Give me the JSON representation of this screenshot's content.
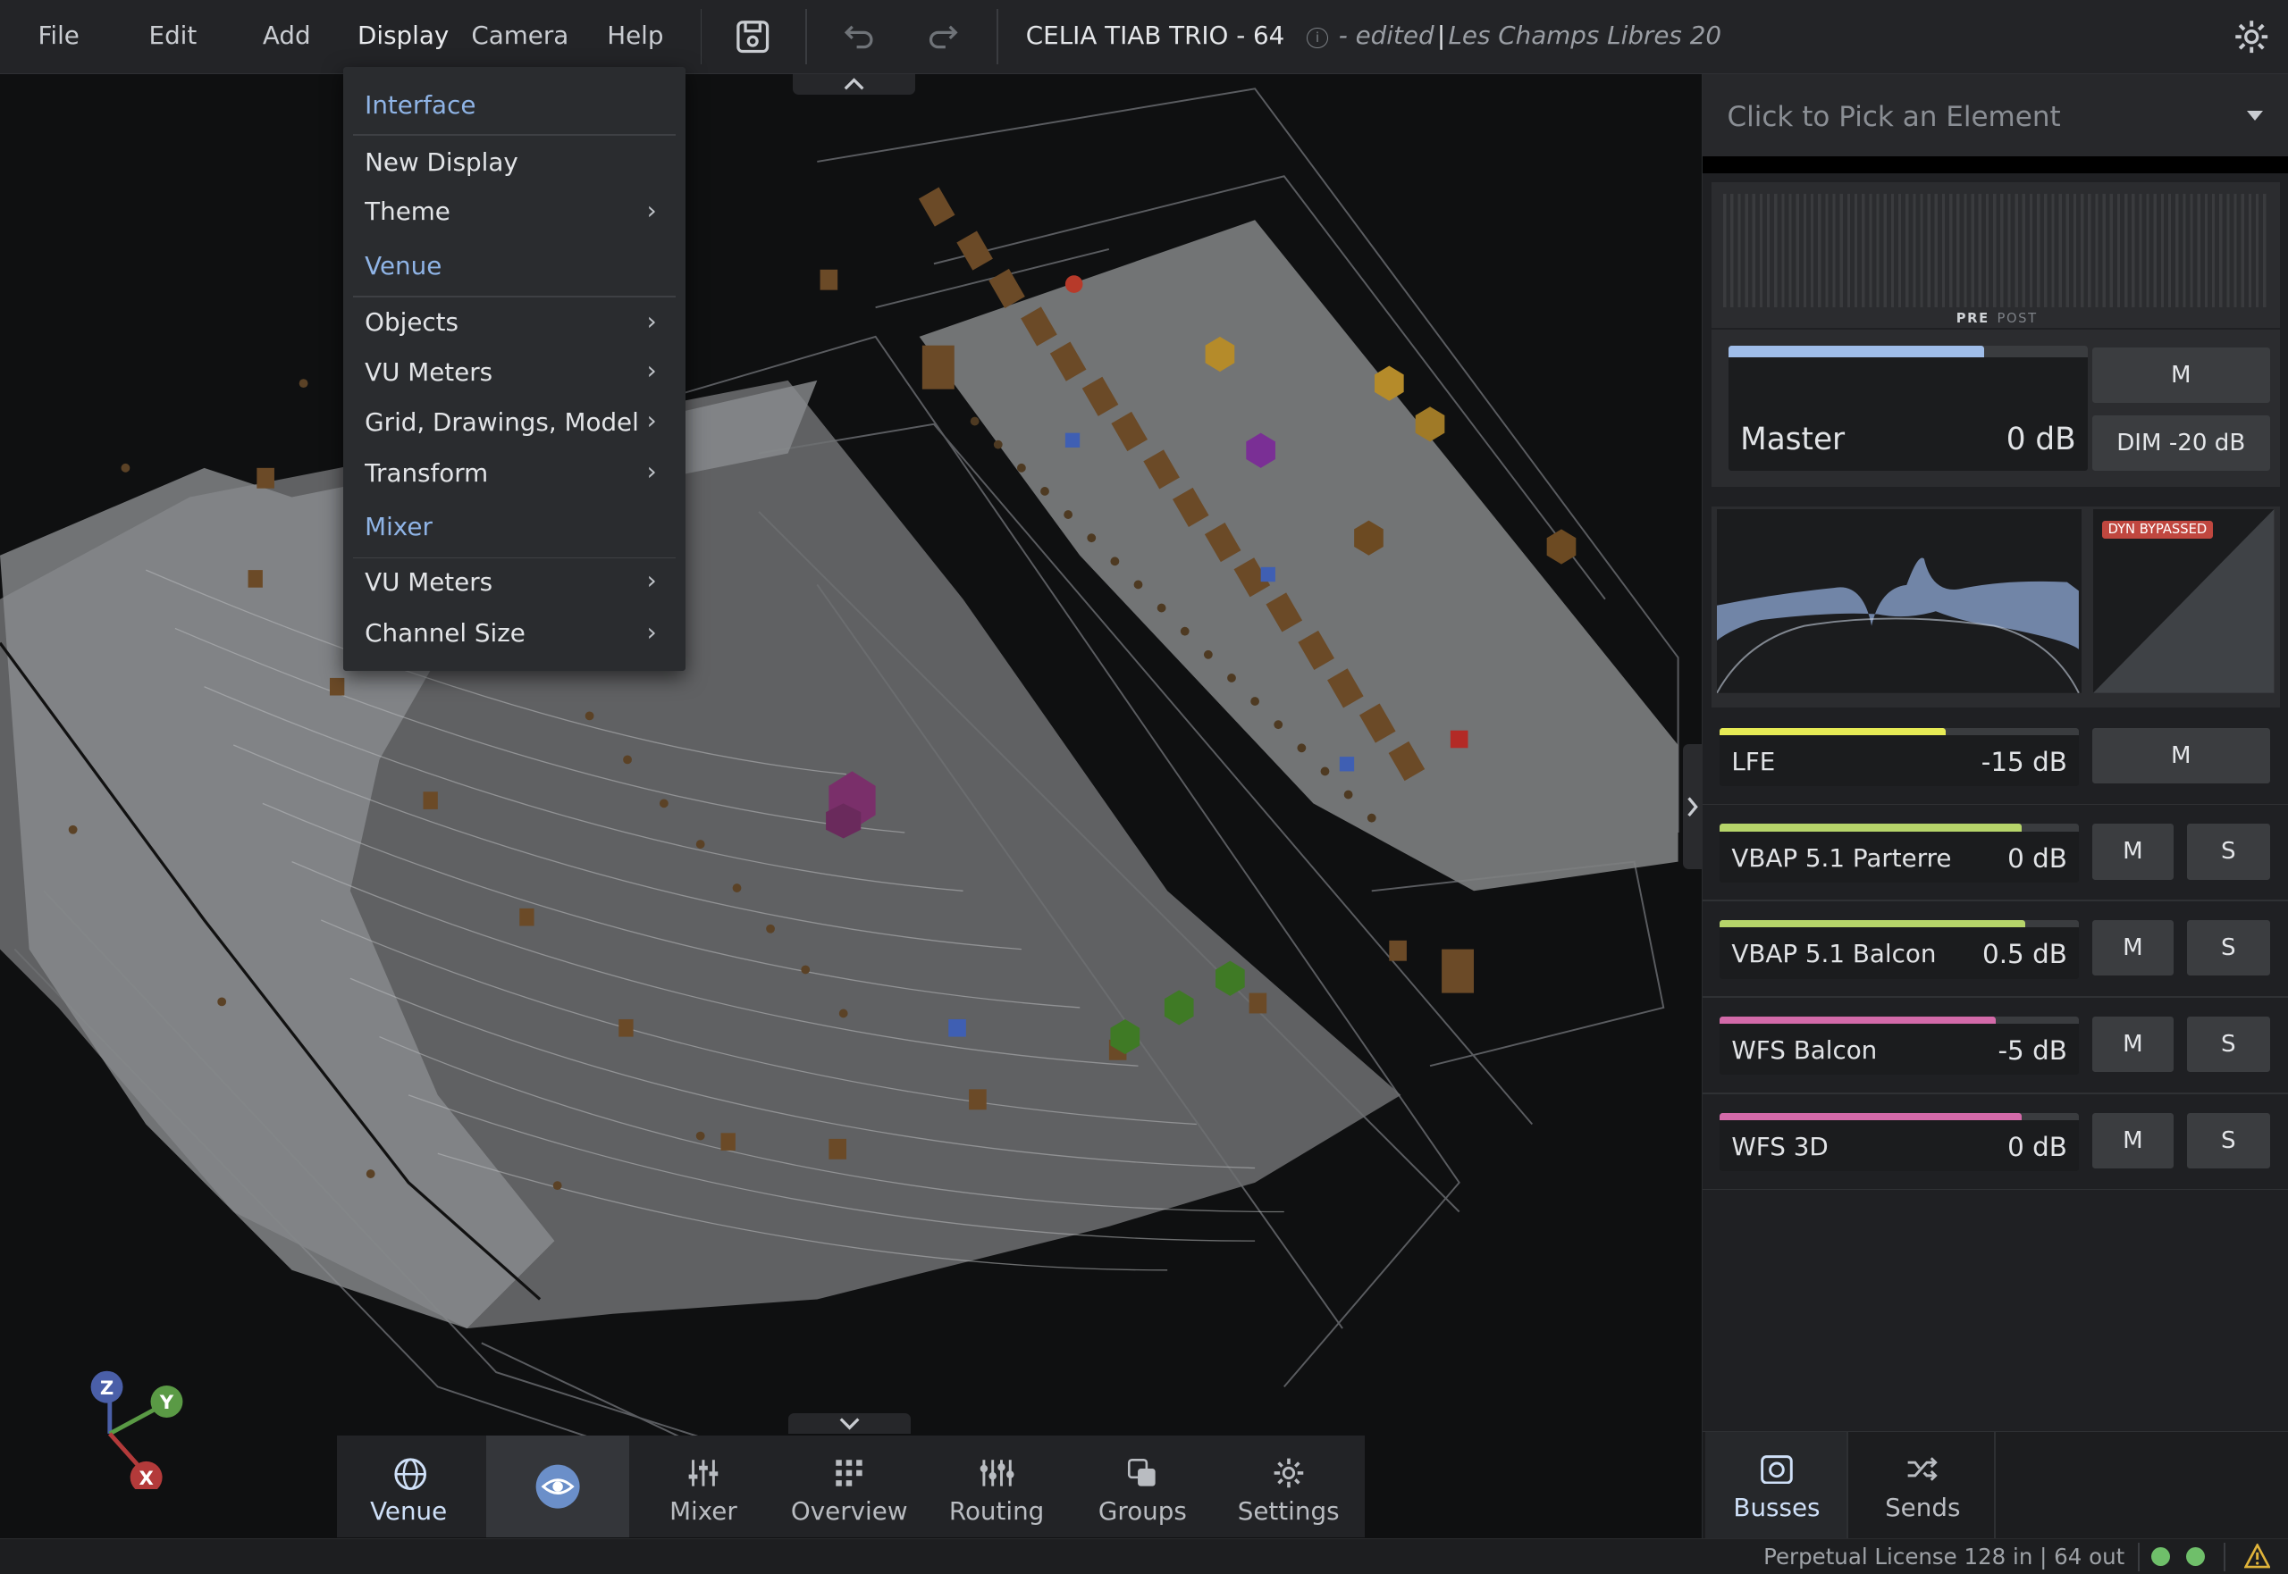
{
  "menubar": {
    "items": [
      "File",
      "Edit",
      "Add",
      "Display",
      "Camera",
      "Help"
    ]
  },
  "toolbar": {
    "save_icon": "save-icon",
    "undo_icon": "undo-icon",
    "redo_icon": "redo-icon"
  },
  "document": {
    "title": "CELIA TIAB TRIO - 64",
    "edited": " - edited",
    "separator": "|",
    "venue": "Les Champs Libres 20"
  },
  "display_menu": {
    "sections": [
      {
        "label": "Interface",
        "items": [
          {
            "label": "New Display",
            "submenu": false
          },
          {
            "label": "Theme",
            "submenu": true
          }
        ]
      },
      {
        "label": "Venue",
        "items": [
          {
            "label": "Objects",
            "submenu": true
          },
          {
            "label": "VU Meters",
            "submenu": true
          },
          {
            "label": "Grid, Drawings, Model",
            "submenu": true
          },
          {
            "label": "Transform",
            "submenu": true
          }
        ]
      },
      {
        "label": "Mixer",
        "items": [
          {
            "label": "VU Meters",
            "submenu": true
          },
          {
            "label": "Channel Size",
            "submenu": true
          }
        ]
      }
    ]
  },
  "axes_gizmo": {
    "z": "Z",
    "y": "Y",
    "x": "X"
  },
  "bottom_tabs": [
    {
      "label": "Venue",
      "icon": "globe-icon",
      "active": true
    },
    {
      "label": "",
      "icon": "eye-icon",
      "active": false
    },
    {
      "label": "Mixer",
      "icon": "sliders-icon",
      "active": false
    },
    {
      "label": "Overview",
      "icon": "grid-icon",
      "active": false
    },
    {
      "label": "Routing",
      "icon": "routing-icon",
      "active": false
    },
    {
      "label": "Groups",
      "icon": "groups-icon",
      "active": false
    },
    {
      "label": "Settings",
      "icon": "gear-icon",
      "active": false
    }
  ],
  "right_panel": {
    "picker_placeholder": "Click to Pick an Element",
    "meter_pre": "PRE",
    "meter_post": "POST",
    "master": {
      "name": "Master",
      "db": "0 dB",
      "mute": "M",
      "dim": "DIM -20 dB",
      "level": 0.84,
      "color": "#9fbde9"
    },
    "dyn_badge": "DYN BYPASSED",
    "channels": [
      {
        "name": "LFE",
        "db": "-15 dB",
        "level": 0.63,
        "color": "#e6ea55",
        "mute": "M",
        "solo": ""
      },
      {
        "name": "VBAP 5.1 Parterre",
        "db": "0 dB",
        "level": 0.84,
        "color": "#b6d46a",
        "mute": "M",
        "solo": "S"
      },
      {
        "name": "VBAP 5.1 Balcon",
        "db": "0.5 dB",
        "level": 0.85,
        "color": "#b6d46a",
        "mute": "M",
        "solo": "S"
      },
      {
        "name": "WFS Balcon",
        "db": "-5 dB",
        "level": 0.77,
        "color": "#d36aa9",
        "mute": "M",
        "solo": "S"
      },
      {
        "name": "WFS 3D",
        "db": "0 dB",
        "level": 0.84,
        "color": "#d36aa9",
        "mute": "M",
        "solo": "S"
      }
    ],
    "tabs": [
      {
        "label": "Busses",
        "icon": "speaker-icon",
        "active": true
      },
      {
        "label": "Sends",
        "icon": "sends-icon",
        "active": false
      }
    ]
  },
  "status": {
    "license": "Perpetual License 128 in | 64 out",
    "warning_icon": "warning-icon"
  },
  "colors": {
    "accent": "#8fb4e6",
    "status_ok": "#6fbf6a",
    "dyn_badge": "#c0473f"
  }
}
